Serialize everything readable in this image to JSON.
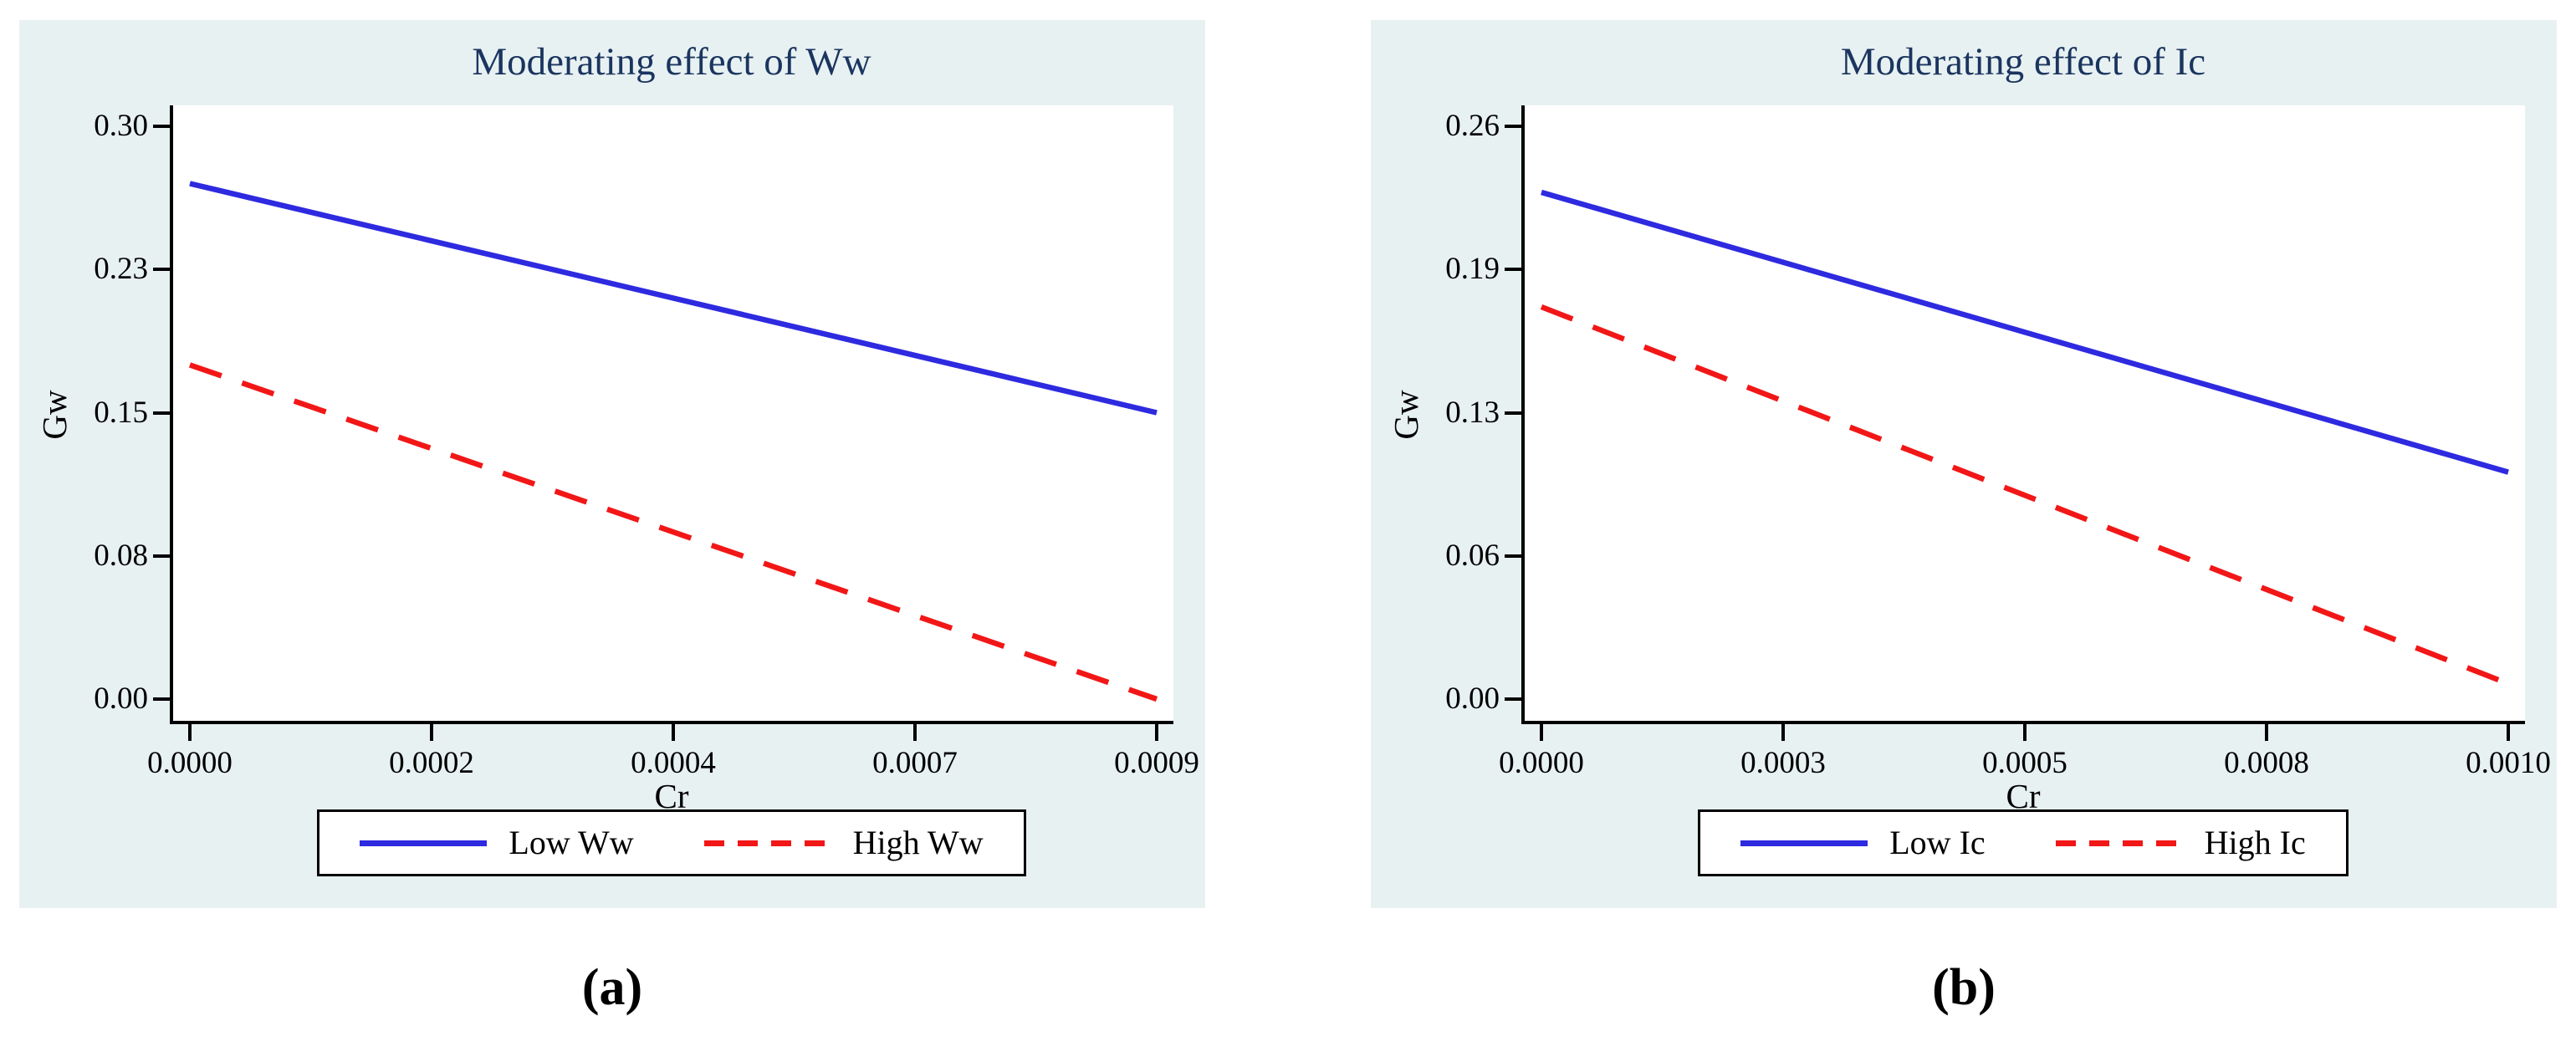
{
  "figure": {
    "captions": {
      "left": "(a)",
      "right": "(b)"
    }
  },
  "colors": {
    "panel_bg": "#e8f1f2",
    "plot_bg": "#ffffff",
    "title": "#1a355f",
    "axis": "#000000",
    "blue_line": "#2e2ae0",
    "red_line": "#f21717",
    "legend_bg": "#ffffff",
    "legend_border": "#000000"
  },
  "chart_data": [
    {
      "type": "line",
      "title": "Moderating effect of Ww",
      "xlabel": "Cr",
      "ylabel": "Gw",
      "x_range": [
        0,
        0.0009
      ],
      "y_range": [
        0,
        0.3
      ],
      "x_tick_labels": [
        "0.0000",
        "0.0002",
        "0.0004",
        "0.0007",
        "0.0009"
      ],
      "y_tick_labels": [
        "0.30",
        "0.23",
        "0.15",
        "0.08",
        "0.00"
      ],
      "grid": false,
      "legend_position": "bottom-center",
      "series": [
        {
          "name": "Low Ww",
          "style": "solid",
          "color": "#2e2ae0",
          "x": [
            0,
            0.0009
          ],
          "y": [
            0.27,
            0.15
          ]
        },
        {
          "name": "High Ww",
          "style": "dashed",
          "color": "#f21717",
          "x": [
            0,
            0.0009
          ],
          "y": [
            0.175,
            0.0
          ]
        }
      ]
    },
    {
      "type": "line",
      "title": "Moderating effect of Ic",
      "xlabel": "Cr",
      "ylabel": "Gw",
      "x_range": [
        0,
        0.001
      ],
      "y_range": [
        0,
        0.26
      ],
      "x_tick_labels": [
        "0.0000",
        "0.0003",
        "0.0005",
        "0.0008",
        "0.0010"
      ],
      "y_tick_labels": [
        "0.26",
        "0.19",
        "0.13",
        "0.06",
        "0.00"
      ],
      "grid": false,
      "legend_position": "bottom-center",
      "series": [
        {
          "name": "Low Ic",
          "style": "solid",
          "color": "#2e2ae0",
          "x": [
            0,
            0.001
          ],
          "y": [
            0.23,
            0.103
          ]
        },
        {
          "name": "High Ic",
          "style": "dashed",
          "color": "#f21717",
          "x": [
            0,
            0.001
          ],
          "y": [
            0.178,
            0.007
          ]
        }
      ]
    }
  ]
}
